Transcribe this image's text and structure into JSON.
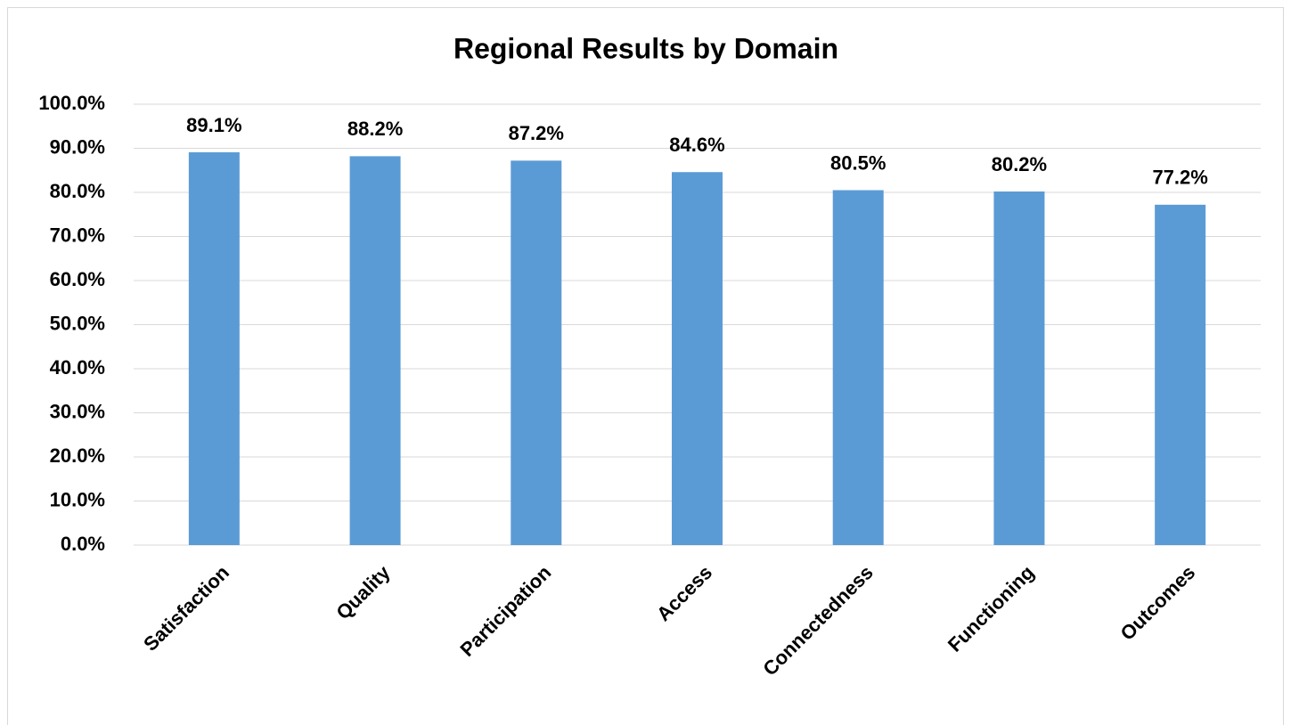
{
  "chart_data": {
    "type": "bar",
    "title": "Regional Results by Domain",
    "categories": [
      "Satisfaction",
      "Quality",
      "Participation",
      "Access",
      "Connectedness",
      "Functioning",
      "Outcomes"
    ],
    "values": [
      89.1,
      88.2,
      87.2,
      84.6,
      80.5,
      80.2,
      77.2
    ],
    "value_labels": [
      "89.1%",
      "88.2%",
      "87.2%",
      "84.6%",
      "80.5%",
      "80.2%",
      "77.2%"
    ],
    "color": "#5b9bd5",
    "ylim": [
      0,
      100
    ],
    "yticks": [
      {
        "value": 0,
        "label": "0.0%"
      },
      {
        "value": 10,
        "label": "10.0%"
      },
      {
        "value": 20,
        "label": "20.0%"
      },
      {
        "value": 30,
        "label": "30.0%"
      },
      {
        "value": 40,
        "label": "40.0%"
      },
      {
        "value": 50,
        "label": "50.0%"
      },
      {
        "value": 60,
        "label": "60.0%"
      },
      {
        "value": 70,
        "label": "70.0%"
      },
      {
        "value": 80,
        "label": "80.0%"
      },
      {
        "value": 90,
        "label": "90.0%"
      },
      {
        "value": 100,
        "label": "100.0%"
      }
    ],
    "grid": true
  }
}
